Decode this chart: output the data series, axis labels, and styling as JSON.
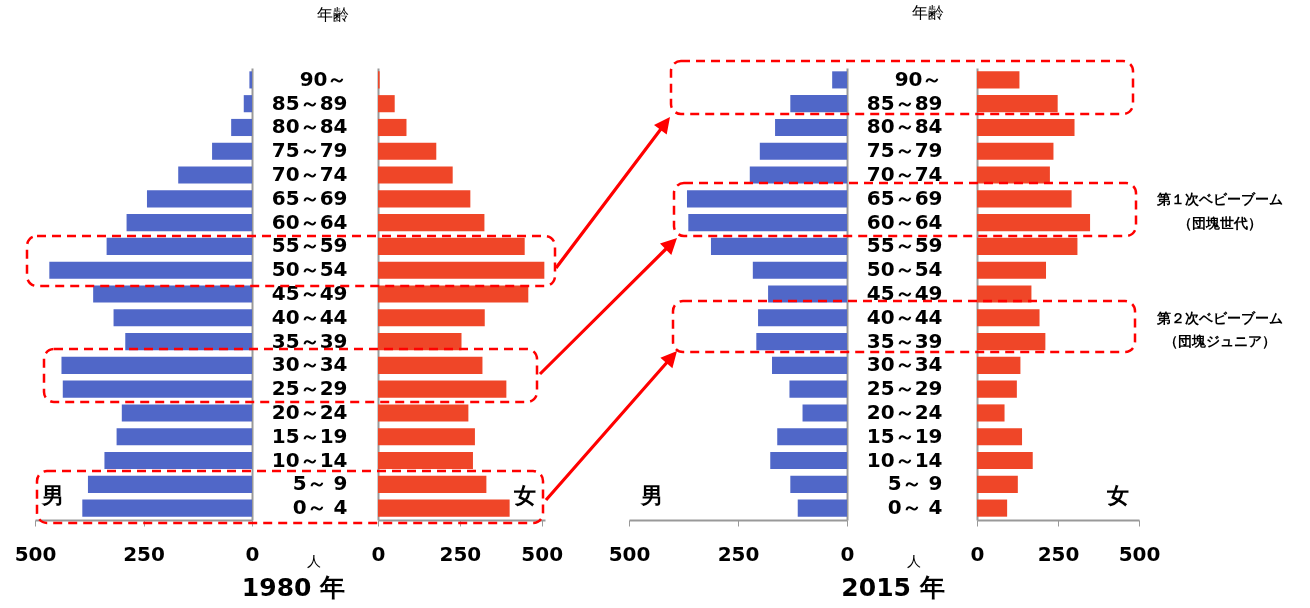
{
  "chart_data": [
    {
      "type": "bar",
      "orientation": "horizontal",
      "title": "1980 年",
      "xlabel": "人",
      "ylabel": "年齢",
      "categories": [
        "90～",
        "85～89",
        "80～84",
        "75～79",
        "70～74",
        "65～69",
        "60～64",
        "55～59",
        "50～54",
        "45～49",
        "40～44",
        "35～39",
        "30～34",
        "25～29",
        "20～24",
        "15～19",
        "10～14",
        "5～ 9",
        "0～ 4"
      ],
      "series": [
        {
          "name": "男",
          "color": "#5067c8",
          "values": [
            6,
            19,
            48,
            92,
            170,
            242,
            289,
            335,
            467,
            366,
            319,
            292,
            439,
            436,
            300,
            312,
            340,
            378,
            391
          ]
        }
      ],
      "xlim": [
        500,
        0
      ],
      "xticks": [
        500,
        250,
        0
      ]
    },
    {
      "type": "bar",
      "orientation": "horizontal",
      "categories": [
        "90～",
        "85～89",
        "80～84",
        "75～79",
        "70～74",
        "65～69",
        "60～64",
        "55～59",
        "50～54",
        "45～49",
        "40～44",
        "35～39",
        "30～34",
        "25～29",
        "20～24",
        "15～19",
        "10～14",
        "5～ 9",
        "0～ 4"
      ],
      "series": [
        {
          "name": "女",
          "color": "#ef4628",
          "values": [
            5,
            51,
            87,
            178,
            228,
            282,
            325,
            448,
            508,
            459,
            326,
            255,
            319,
            392,
            276,
            296,
            290,
            331,
            402
          ]
        }
      ],
      "xlim": [
        0,
        510
      ],
      "xticks": [
        0,
        250,
        500
      ],
      "tick_labels": "x"
    },
    {
      "type": "bar",
      "orientation": "horizontal",
      "title": "2015 年",
      "xlabel": "人",
      "ylabel": "年齢",
      "categories": [
        "90～",
        "85～89",
        "80～84",
        "75～79",
        "70～74",
        "65～69",
        "60～64",
        "55～59",
        "50～54",
        "45～49",
        "40～44",
        "35～39",
        "30～34",
        "25～29",
        "20～24",
        "15～19",
        "10～14",
        "5～ 9",
        "0～ 4"
      ],
      "series": [
        {
          "name": "男",
          "color": "#5067c8",
          "values": [
            34,
            130,
            165,
            200,
            223,
            367,
            364,
            312,
            216,
            181,
            204,
            208,
            172,
            132,
            102,
            160,
            176,
            130,
            113
          ]
        }
      ],
      "xlim": [
        500,
        0
      ],
      "xticks": [
        500,
        250,
        0
      ],
      "annotations": [
        "第１次ベビーブーム",
        "（団塊世代）",
        "第２次ベビーブーム",
        "（団塊ジュニア）"
      ]
    },
    {
      "type": "bar",
      "orientation": "horizontal",
      "categories": [
        "90～",
        "85～89",
        "80～84",
        "75～79",
        "70～74",
        "65～69",
        "60～64",
        "55～59",
        "50～54",
        "45～49",
        "40～44",
        "35～39",
        "30～34",
        "25～29",
        "20～24",
        "15～19",
        "10～14",
        "5～ 9",
        "0～ 4"
      ],
      "series": [
        {
          "name": "女",
          "color": "#ef4628",
          "values": [
            131,
            249,
            301,
            236,
            225,
            292,
            349,
            310,
            213,
            168,
            193,
            211,
            134,
            123,
            85,
            139,
            172,
            126,
            93
          ]
        }
      ],
      "xlim": [
        0,
        500
      ],
      "xticks": [
        0,
        250,
        500
      ],
      "tick_labels": "x"
    }
  ]
}
